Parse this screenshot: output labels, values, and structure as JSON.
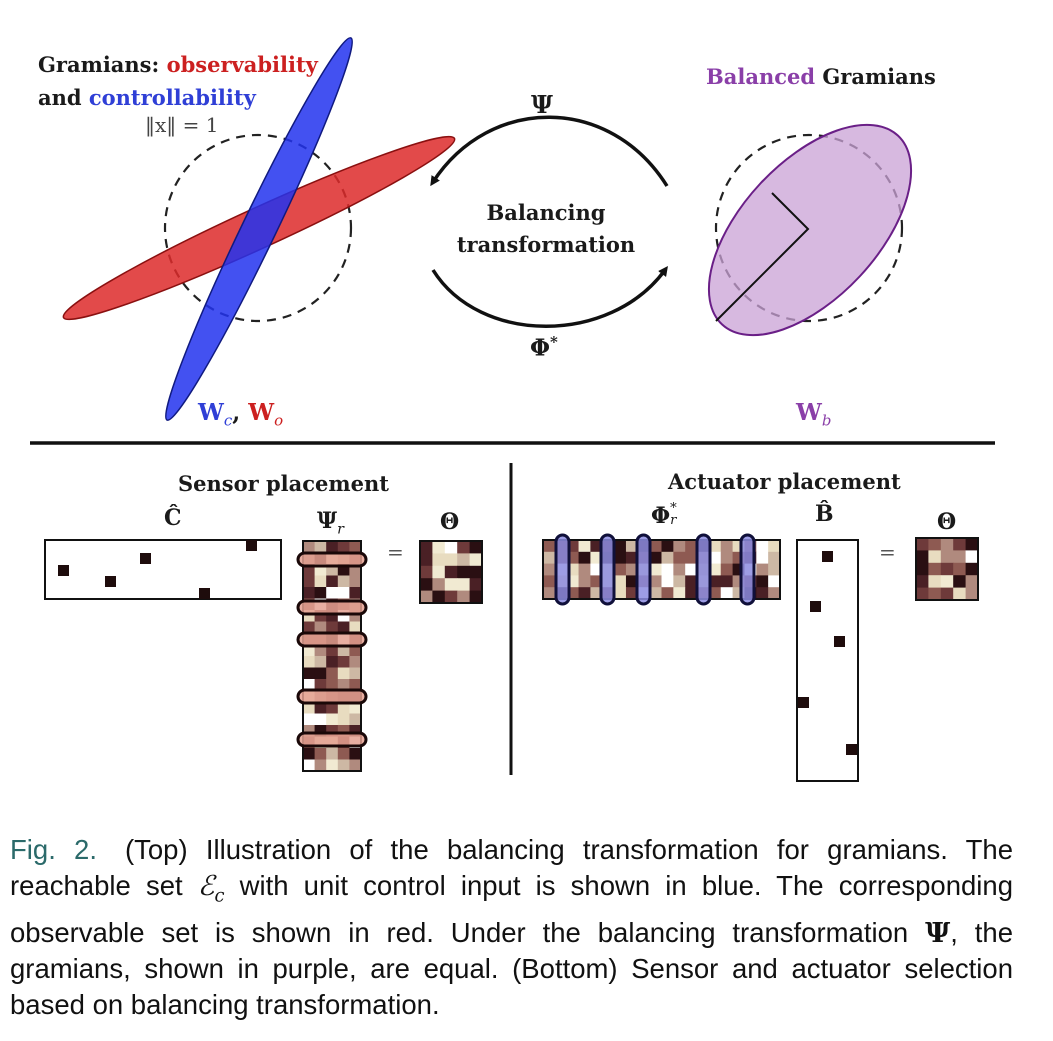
{
  "top": {
    "gramians_prefix": "Gramians: ",
    "observability": "observability",
    "and": "and ",
    "controllability": "controllability",
    "norm_label": "‖x‖ = 1",
    "balanced_word": "Balanced",
    "gramians_word": " Gramians",
    "psi": "Ψ",
    "balancing_transformation": "Balancing transformation",
    "phi_star_base": "Φ",
    "phi_star_sup": "*",
    "wc_base": "W",
    "wc_sub": "c",
    "wc_sep": ", ",
    "wo_base": "W",
    "wo_sub": "o",
    "wb_base": "W",
    "wb_sub": "b"
  },
  "bottom": {
    "sensor_title": "Sensor placement",
    "actuator_title": "Actuator placement",
    "c_hat": "Ĉ",
    "psi_r_base": "Ψ",
    "psi_r_sub": "r",
    "theta": "Θ",
    "phi_r_base": "Φ",
    "phi_r_sup": "*",
    "phi_r_sub": "r",
    "b_hat": "B̂",
    "equals": "="
  },
  "caption": {
    "fig_no": "Fig. 2.",
    "text_1": "(Top) Illustration of the balancing transformation for gramians. The reachable set ",
    "set_symbol": "ℰ",
    "set_sub": "c",
    "text_2": " with unit control input is shown in blue. The corresponding observable set is shown in red. Under the balancing transformation ",
    "psi": "Ψ",
    "text_3": ", the gramians, shown in purple, are equal. (Bottom) Sensor and actuator selection based on balancing transformation."
  },
  "colors": {
    "observability_red": "#cc2020",
    "controllability_blue": "#2f3fd6",
    "balanced_purple": "#8a3fa8",
    "caption_figno": "#2b6a6a"
  }
}
